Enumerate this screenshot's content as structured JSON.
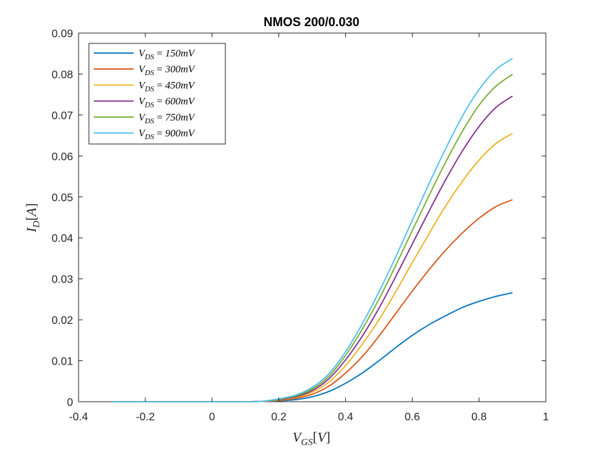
{
  "chart_data": {
    "type": "line",
    "title": "NMOS 200/0.030",
    "xlabel": "V_GS[V]",
    "ylabel": "I_D[A]",
    "xlim": [
      -0.4,
      1.0
    ],
    "ylim": [
      0,
      0.09
    ],
    "xticks": [
      "-0.4",
      "-0.2",
      "0",
      "0.2",
      "0.4",
      "0.6",
      "0.8",
      "1"
    ],
    "yticks": [
      "0",
      "0.01",
      "0.02",
      "0.03",
      "0.04",
      "0.05",
      "0.06",
      "0.07",
      "0.08",
      "0.09"
    ],
    "grid": false,
    "legend_position": "top-left",
    "x": [
      -0.3,
      -0.2,
      -0.1,
      0.0,
      0.1,
      0.15,
      0.2,
      0.25,
      0.3,
      0.35,
      0.4,
      0.45,
      0.5,
      0.55,
      0.6,
      0.65,
      0.7,
      0.75,
      0.8,
      0.85,
      0.9
    ],
    "series": [
      {
        "name": "V_DS = 150mV",
        "color": "#0072BD",
        "values": [
          0,
          0,
          0,
          0,
          0,
          0.0001,
          0.0002,
          0.0005,
          0.0012,
          0.0025,
          0.0045,
          0.007,
          0.01,
          0.0132,
          0.0162,
          0.0188,
          0.021,
          0.023,
          0.0245,
          0.0257,
          0.0266
        ]
      },
      {
        "name": "V_DS = 300mV",
        "color": "#D95319",
        "values": [
          0,
          0,
          0,
          0,
          0,
          0.0001,
          0.0003,
          0.0008,
          0.0018,
          0.0038,
          0.007,
          0.011,
          0.016,
          0.0215,
          0.027,
          0.0322,
          0.037,
          0.0412,
          0.0448,
          0.0476,
          0.0493
        ]
      },
      {
        "name": "V_DS = 450mV",
        "color": "#EDB120",
        "values": [
          0,
          0,
          0,
          0,
          0,
          0.0001,
          0.0004,
          0.001,
          0.0023,
          0.0048,
          0.0088,
          0.014,
          0.02,
          0.0268,
          0.034,
          0.041,
          0.0478,
          0.0538,
          0.059,
          0.063,
          0.0655
        ]
      },
      {
        "name": "V_DS = 600mV",
        "color": "#7E2F8E",
        "values": [
          0,
          0,
          0,
          0,
          0,
          0.0001,
          0.0005,
          0.0012,
          0.0027,
          0.0056,
          0.0102,
          0.016,
          0.0228,
          0.0305,
          0.0385,
          0.0465,
          0.0542,
          0.0612,
          0.0672,
          0.0718,
          0.0746
        ]
      },
      {
        "name": "V_DS = 750mV",
        "color": "#77AC30",
        "values": [
          0,
          0,
          0,
          0,
          0,
          0.0001,
          0.0006,
          0.0014,
          0.0031,
          0.0062,
          0.0113,
          0.0177,
          0.025,
          0.0332,
          0.0418,
          0.0503,
          0.0585,
          0.066,
          0.0724,
          0.077,
          0.0799
        ]
      },
      {
        "name": "V_DS = 900mV",
        "color": "#4DBEEE",
        "values": [
          0,
          0,
          0,
          0,
          0,
          0.0001,
          0.0007,
          0.0016,
          0.0035,
          0.0068,
          0.0122,
          0.019,
          0.0268,
          0.0353,
          0.0443,
          0.0532,
          0.0618,
          0.0697,
          0.0762,
          0.081,
          0.0838
        ]
      }
    ]
  }
}
